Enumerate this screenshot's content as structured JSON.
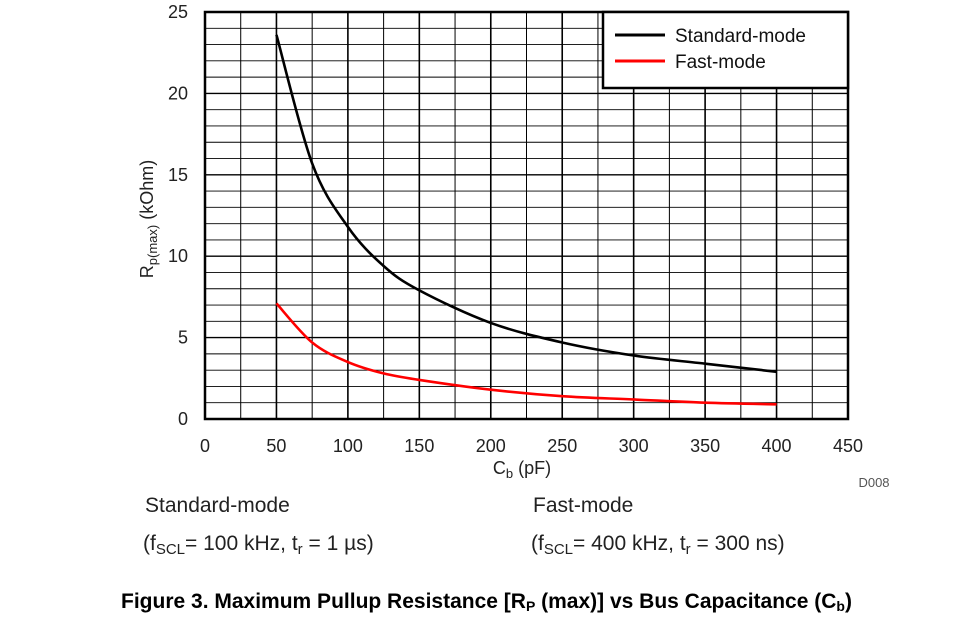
{
  "chart_data": {
    "type": "line",
    "x": [
      50,
      75,
      100,
      125,
      150,
      200,
      250,
      300,
      350,
      400
    ],
    "series": [
      {
        "name": "Standard-mode",
        "color": "#000000",
        "values": [
          23.6,
          15.7,
          11.8,
          9.4,
          7.9,
          5.9,
          4.7,
          3.9,
          3.4,
          2.9
        ]
      },
      {
        "name": "Fast-mode",
        "color": "#ff0000",
        "values": [
          7.1,
          4.7,
          3.5,
          2.8,
          2.4,
          1.8,
          1.4,
          1.2,
          1.0,
          0.9
        ]
      }
    ],
    "xlim": [
      0,
      450
    ],
    "ylim": [
      0,
      25
    ],
    "x_ticks": [
      "0",
      "50",
      "100",
      "150",
      "200",
      "250",
      "300",
      "350",
      "400",
      "450"
    ],
    "y_ticks": [
      "0",
      "5",
      "10",
      "15",
      "20",
      "25"
    ],
    "xlabel": {
      "main": "C",
      "sub": "b",
      "rest": " (pF)"
    },
    "ylabel": {
      "main": "R",
      "sub": "p(max)",
      "rest": " (kOhm)"
    },
    "grid": true,
    "legend_position": "top-right",
    "code": "D008"
  },
  "conditions": {
    "standard": {
      "title": "Standard-mode",
      "open": "(f",
      "sub": "SCL",
      "middle": "= 100 kHz, t",
      "tsub": "r",
      "close": " = 1 µs)"
    },
    "fast": {
      "title": "Fast-mode",
      "open": "(f",
      "sub": "SCL",
      "middle": "= 400 kHz, t",
      "tsub": "r",
      "close": " = 300 ns)"
    }
  },
  "caption": {
    "pre": "Figure 3. Maximum Pullup Resistance [R",
    "sub": "P",
    "mid": " (max)] vs Bus Capacitance (C",
    "sub2": "b",
    "post": ")"
  }
}
